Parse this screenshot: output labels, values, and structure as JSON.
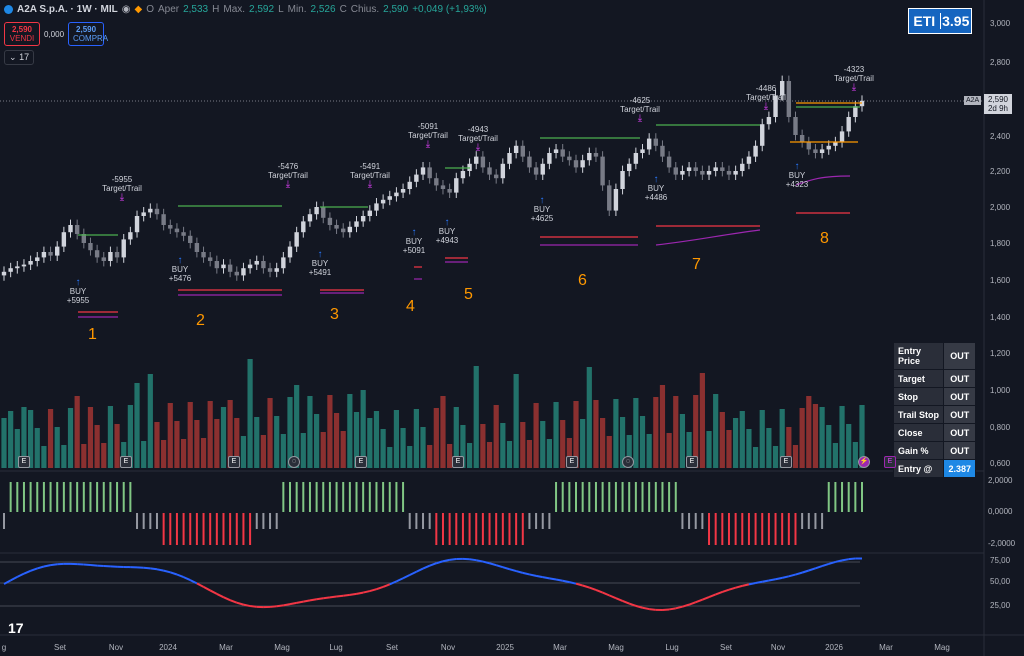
{
  "header": {
    "symbol": "A2A S.p.A. · 1W · MIL",
    "open_label": "O",
    "open_name": "Aper",
    "open": "2,533",
    "high_label": "H",
    "high_name": "Max.",
    "high": "2,592",
    "low_label": "L",
    "low_name": "Min.",
    "low": "2,526",
    "close_label": "C",
    "close_name": "Chius.",
    "close": "2,590",
    "change": "+0,049 (+1,93%)"
  },
  "trade": {
    "sell_price": "2,590",
    "sell_label": "VENDI",
    "spread": "0,000",
    "buy_price": "2,590",
    "buy_label": "COMPRA"
  },
  "indicator_count": "17",
  "eti": {
    "label": "ETI",
    "value": "3.95"
  },
  "table": [
    {
      "label": "Entry Price",
      "value": "OUT"
    },
    {
      "label": "Target",
      "value": "OUT"
    },
    {
      "label": "Stop",
      "value": "OUT"
    },
    {
      "label": "Trail Stop",
      "value": "OUT"
    },
    {
      "label": "Close",
      "value": "OUT"
    },
    {
      "label": "Gain %",
      "value": "OUT"
    },
    {
      "label": "Entry @",
      "value": "2.387"
    }
  ],
  "price_axis": [
    "3,000",
    "2,800",
    "2,600",
    "2,400",
    "2,200",
    "2,000",
    "1,800",
    "1,600",
    "1,400",
    "1,200",
    "1,000",
    "0,800",
    "0,600"
  ],
  "osc_axis": [
    "2,0000",
    "0,0000",
    "-2,0000"
  ],
  "rsi_axis": [
    "75,00",
    "50,00",
    "25,00"
  ],
  "current_price": {
    "symbol": "A2A",
    "price": "2,590",
    "countdown": "2d 9h"
  },
  "x_axis": [
    "g",
    "Set",
    "Nov",
    "2024",
    "Mar",
    "Mag",
    "Lug",
    "Set",
    "Nov",
    "2025",
    "Mar",
    "Mag",
    "Lug",
    "Set",
    "Nov",
    "2026",
    "Mar",
    "Mag"
  ],
  "trade_numbers": [
    "1",
    "2",
    "3",
    "4",
    "5",
    "6",
    "7",
    "8"
  ],
  "annotations": [
    {
      "text": "-5955",
      "sub": "Target/Trail"
    },
    {
      "text": "-5476",
      "sub": "Target/Trail"
    },
    {
      "text": "-5491",
      "sub": "Target/Trail"
    },
    {
      "text": "-5091",
      "sub": "Target/Trail"
    },
    {
      "text": "-4943",
      "sub": "Target/Trail"
    },
    {
      "text": "-4625",
      "sub": "Target/Trail"
    },
    {
      "text": "-4486",
      "sub": "Target/Trail"
    },
    {
      "text": "-4323",
      "sub": "Target/Trail"
    }
  ],
  "buys": [
    {
      "text": "BUY",
      "sub": "+5955"
    },
    {
      "text": "BUY",
      "sub": "+5476"
    },
    {
      "text": "BUY",
      "sub": "+5491"
    },
    {
      "text": "BUY",
      "sub": "+5091"
    },
    {
      "text": "BUY",
      "sub": "+4943"
    },
    {
      "text": "BUY",
      "sub": "+4625"
    },
    {
      "text": "BUY",
      "sub": "+4486"
    },
    {
      "text": "BUY",
      "sub": "+4323"
    }
  ],
  "event_label": "E",
  "colors": {
    "up": "#d1d4dc",
    "down": "#787b86",
    "vol_up": "#22726a",
    "vol_down": "#8b3030",
    "green": "#4caf50",
    "red": "#f23645",
    "purple": "#9c27b0",
    "orange": "#ff9800",
    "blue": "#2962ff"
  }
}
